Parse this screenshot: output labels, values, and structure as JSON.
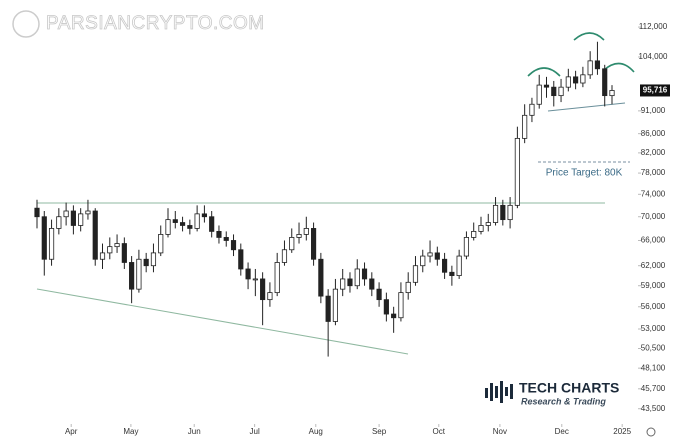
{
  "chart_data": {
    "type": "candlestick",
    "watermark": "PARSIANCRYPTO.COM",
    "annotation": "Price Target: 80K",
    "brand": {
      "name": "TECH CHARTS",
      "tagline": "Research & Trading"
    },
    "log": true,
    "ylim": [
      42300,
      115400
    ],
    "yticks": [
      {
        "value": 43500,
        "label": "43,500"
      },
      {
        "value": 45700,
        "label": "45,700"
      },
      {
        "value": 48100,
        "label": "48,100"
      },
      {
        "value": 50500,
        "label": "50,500"
      },
      {
        "value": 53000,
        "label": "53,000"
      },
      {
        "value": 56000,
        "label": "56,000"
      },
      {
        "value": 59000,
        "label": "59,000"
      },
      {
        "value": 62000,
        "label": "62,000"
      },
      {
        "value": 66000,
        "label": "66,000"
      },
      {
        "value": 70000,
        "label": "70,000"
      },
      {
        "value": 74000,
        "label": "74,000"
      },
      {
        "value": 78000,
        "label": "78,000"
      },
      {
        "value": 82000,
        "label": "82,000"
      },
      {
        "value": 86000,
        "label": "86,000"
      },
      {
        "value": 91000,
        "label": "91,000"
      },
      {
        "value": 104000,
        "label": "104,000"
      },
      {
        "value": 112000,
        "label": "112,000"
      }
    ],
    "price_label": {
      "value": 95716,
      "label": "95,716"
    },
    "xlim": [
      0,
      79
    ],
    "xticks": [
      {
        "value": 4.7,
        "label": "Apr"
      },
      {
        "value": 12.9,
        "label": "May"
      },
      {
        "value": 21.6,
        "label": "Jun"
      },
      {
        "value": 29.9,
        "label": "Jul"
      },
      {
        "value": 38.3,
        "label": "Aug"
      },
      {
        "value": 47,
        "label": "Sep"
      },
      {
        "value": 55.2,
        "label": "Oct"
      },
      {
        "value": 63.6,
        "label": "Nov"
      },
      {
        "value": 72.1,
        "label": "Dec"
      },
      {
        "value": 80.4,
        "label": "2025"
      }
    ],
    "up_color": "#ffffff",
    "down_color": "#222222",
    "edge_color": "#222222",
    "open": [
      71500,
      70000,
      63000,
      68000,
      70000,
      71000,
      68500,
      70500,
      71000,
      63000,
      64000,
      65000,
      65500,
      62500,
      58500,
      63000,
      62000,
      64000,
      67000,
      69500,
      69000,
      68500,
      68000,
      70500,
      70000,
      67500,
      66500,
      66000,
      64500,
      61500,
      60000,
      60000,
      57000,
      58000,
      62500,
      64500,
      66500,
      67000,
      68000,
      63000,
      57500,
      54000,
      58500,
      60000,
      59000,
      61500,
      60000,
      58500,
      57000,
      55000,
      54500,
      58000,
      59500,
      62000,
      63500,
      64000,
      63000,
      61000,
      60500,
      63500,
      66500,
      67500,
      68500,
      69000,
      72000,
      69500,
      72000,
      85000,
      90000,
      92500,
      97000,
      96500,
      94500,
      96500,
      99000,
      97500,
      99500,
      103000,
      101000,
      94500
    ],
    "high": [
      73000,
      71000,
      69500,
      71500,
      72500,
      72000,
      71500,
      73000,
      71500,
      65500,
      66500,
      67000,
      66500,
      63500,
      64500,
      64000,
      65500,
      68500,
      71500,
      71000,
      70000,
      69500,
      72000,
      72000,
      71000,
      68500,
      67500,
      67000,
      65500,
      62500,
      61500,
      61000,
      59500,
      64000,
      66000,
      68000,
      69000,
      70000,
      69000,
      64000,
      58500,
      60000,
      61500,
      61000,
      63000,
      62500,
      61000,
      59500,
      58000,
      56000,
      59500,
      61000,
      63500,
      64500,
      66000,
      65000,
      64000,
      62000,
      64500,
      67500,
      69000,
      70000,
      70500,
      73500,
      73000,
      73500,
      87500,
      92500,
      94000,
      99500,
      99000,
      98000,
      98500,
      101000,
      100500,
      101500,
      105500,
      108000,
      102000,
      97000
    ],
    "low": [
      68000,
      60500,
      62000,
      67000,
      68500,
      67000,
      67500,
      69500,
      62000,
      61500,
      63000,
      64000,
      61500,
      56500,
      58000,
      61000,
      61000,
      63500,
      66500,
      68000,
      67500,
      67000,
      67500,
      69000,
      66500,
      65500,
      65000,
      63500,
      60500,
      58500,
      57500,
      53500,
      56000,
      57500,
      62000,
      64000,
      65500,
      66000,
      62000,
      56500,
      49500,
      53500,
      57500,
      58000,
      58500,
      59000,
      57500,
      56000,
      54000,
      52500,
      54000,
      57000,
      59000,
      61000,
      62500,
      62000,
      60000,
      59000,
      60000,
      63000,
      66000,
      67000,
      67500,
      68500,
      68500,
      68000,
      71500,
      84000,
      88500,
      91500,
      94000,
      92000,
      93000,
      95500,
      96000,
      96500,
      98500,
      99500,
      92000,
      92500
    ],
    "close": [
      70000,
      63000,
      68000,
      70000,
      71000,
      68500,
      70500,
      71000,
      63000,
      64000,
      65000,
      65500,
      62500,
      58500,
      63000,
      62000,
      64000,
      67000,
      69500,
      69000,
      68500,
      68000,
      70500,
      70000,
      67500,
      66500,
      66000,
      64500,
      61500,
      60000,
      60000,
      57000,
      58000,
      62500,
      64500,
      66500,
      67000,
      68000,
      63000,
      57500,
      54000,
      58500,
      60000,
      59000,
      61500,
      60000,
      58500,
      57000,
      55000,
      54500,
      58000,
      59500,
      62000,
      63500,
      64000,
      63000,
      61000,
      60500,
      63500,
      66500,
      67500,
      68500,
      69000,
      72000,
      69500,
      72000,
      85000,
      90000,
      92500,
      97000,
      96500,
      94500,
      96500,
      99000,
      97500,
      99500,
      103000,
      101000,
      94500,
      95716
    ]
  }
}
